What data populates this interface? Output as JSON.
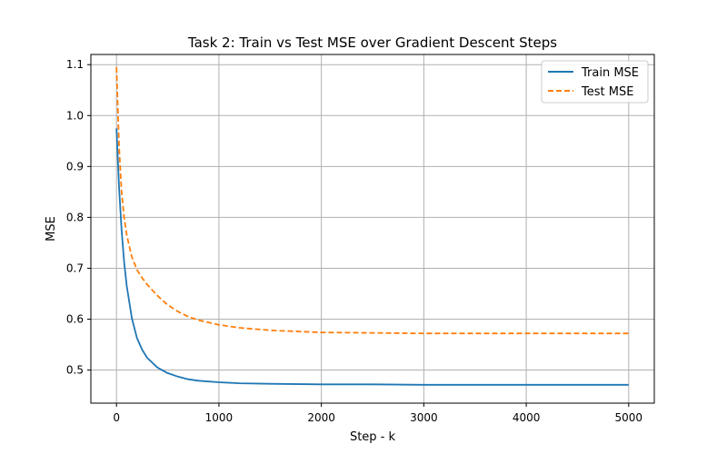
{
  "chart_data": {
    "type": "line",
    "title": "Task 2: Train vs Test MSE over Gradient Descent Steps",
    "xlabel": "Step - k",
    "ylabel": "MSE",
    "xlim": [
      -250,
      5250
    ],
    "ylim": [
      0.435,
      1.12
    ],
    "xticks": [
      0,
      1000,
      2000,
      3000,
      4000,
      5000
    ],
    "yticks": [
      0.5,
      0.6,
      0.7,
      0.8,
      0.9,
      1.0,
      1.1
    ],
    "xtick_labels": [
      "0",
      "1000",
      "2000",
      "3000",
      "4000",
      "5000"
    ],
    "ytick_labels": [
      "0.5",
      "0.6",
      "0.7",
      "0.8",
      "0.9",
      "1.0",
      "1.1"
    ],
    "grid": true,
    "legend_position": "top-right",
    "series": [
      {
        "name": "Train MSE",
        "color": "#1f77b4",
        "style": "solid",
        "x": [
          0,
          25,
          50,
          75,
          100,
          150,
          200,
          250,
          300,
          400,
          500,
          600,
          700,
          800,
          1000,
          1200,
          1500,
          2000,
          2500,
          3000,
          3500,
          4000,
          4500,
          5000
        ],
        "y": [
          0.975,
          0.86,
          0.775,
          0.712,
          0.665,
          0.602,
          0.563,
          0.54,
          0.524,
          0.505,
          0.494,
          0.487,
          0.482,
          0.479,
          0.476,
          0.474,
          0.473,
          0.472,
          0.472,
          0.471,
          0.471,
          0.471,
          0.471,
          0.471
        ]
      },
      {
        "name": "Test MSE",
        "color": "#ff7f0e",
        "style": "dashed",
        "x": [
          0,
          25,
          50,
          75,
          100,
          150,
          200,
          250,
          300,
          400,
          500,
          600,
          700,
          800,
          1000,
          1200,
          1500,
          2000,
          2500,
          3000,
          3500,
          4000,
          4500,
          5000
        ],
        "y": [
          1.095,
          0.94,
          0.85,
          0.8,
          0.765,
          0.722,
          0.697,
          0.681,
          0.668,
          0.646,
          0.628,
          0.615,
          0.605,
          0.598,
          0.589,
          0.583,
          0.578,
          0.574,
          0.573,
          0.572,
          0.572,
          0.572,
          0.572,
          0.572
        ]
      }
    ]
  }
}
